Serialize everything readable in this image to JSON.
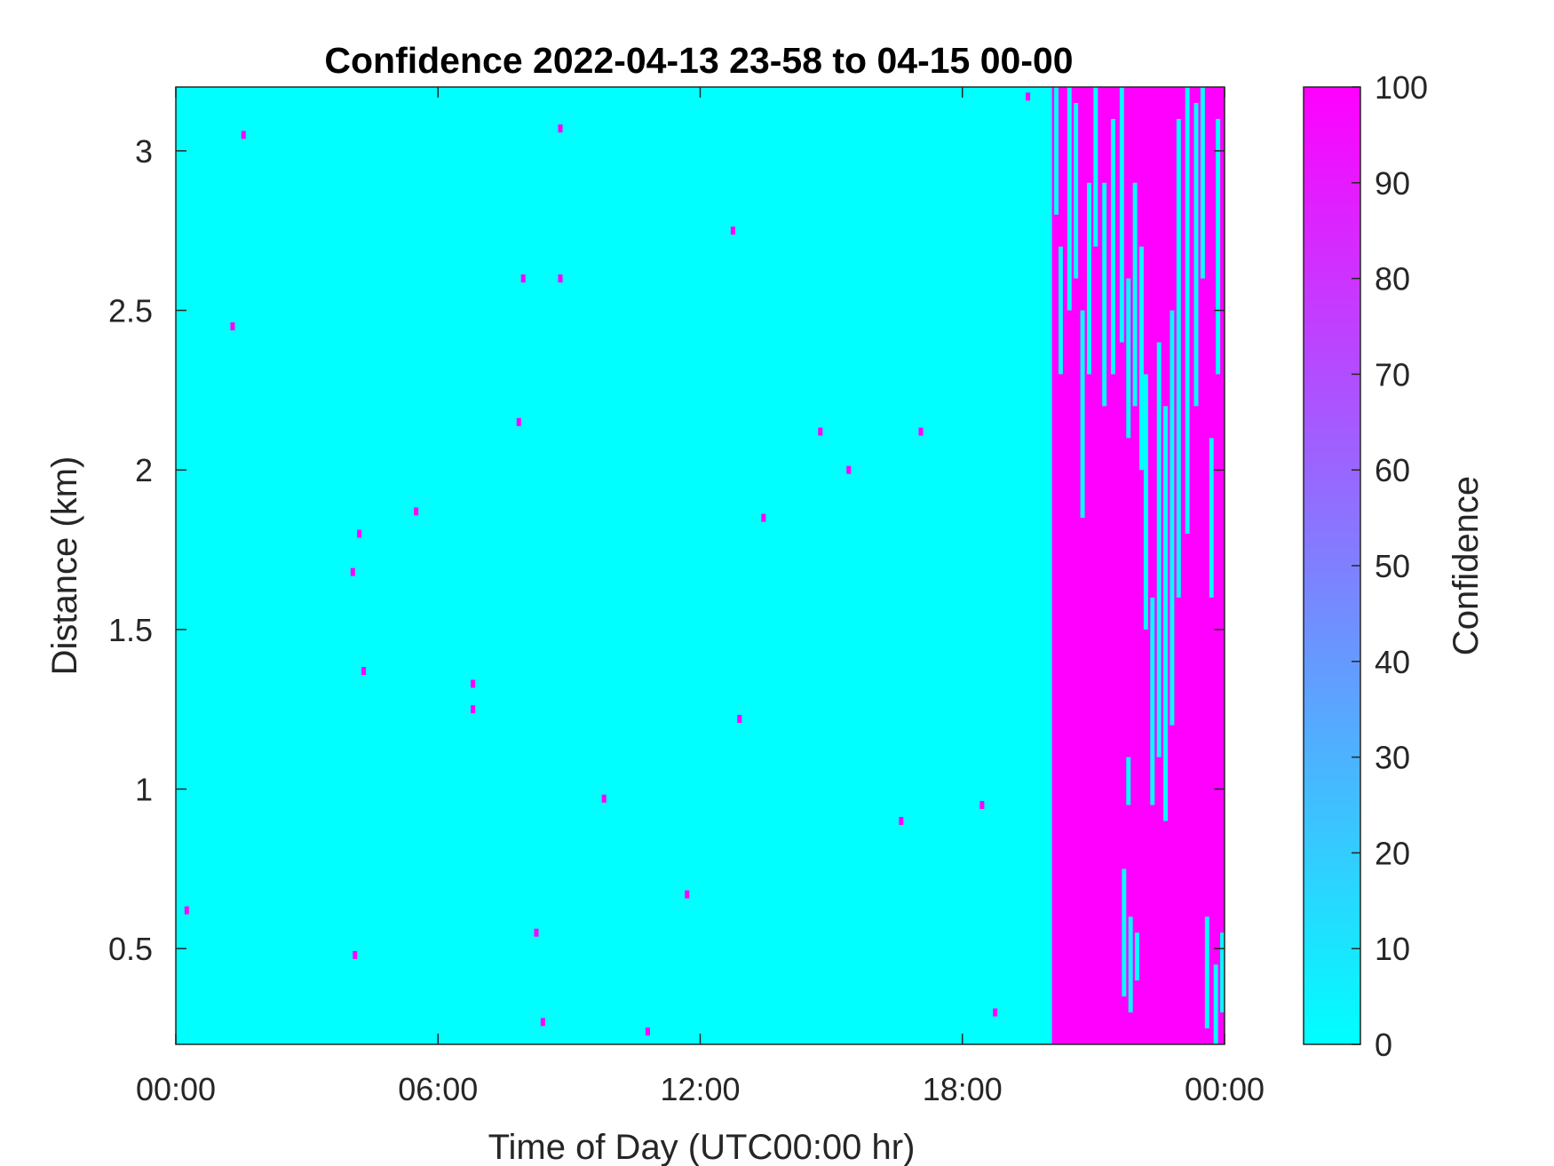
{
  "chart_data": {
    "type": "heatmap",
    "title": "Confidence 2022-04-13 23-58 to 04-15 00-00",
    "xlabel": "Time of Day (UTC00:00 hr)",
    "ylabel": "Distance (km)",
    "xlim_hours": [
      0,
      24
    ],
    "ylim_km": [
      0.2,
      3.2
    ],
    "x_ticks": [
      {
        "hour": 0,
        "label": "00:00"
      },
      {
        "hour": 6,
        "label": "06:00"
      },
      {
        "hour": 12,
        "label": "12:00"
      },
      {
        "hour": 18,
        "label": "18:00"
      },
      {
        "hour": 24,
        "label": "00:00"
      }
    ],
    "y_ticks": [
      {
        "value": 0.5,
        "label": "0.5"
      },
      {
        "value": 1.0,
        "label": "1"
      },
      {
        "value": 1.5,
        "label": "1.5"
      },
      {
        "value": 2.0,
        "label": "2"
      },
      {
        "value": 2.5,
        "label": "2.5"
      },
      {
        "value": 3.0,
        "label": "3"
      }
    ],
    "colorbar": {
      "label": "Confidence",
      "range": [
        0,
        100
      ],
      "ticks": [
        "0",
        "10",
        "20",
        "30",
        "40",
        "50",
        "60",
        "70",
        "80",
        "90",
        "100"
      ],
      "colormap": [
        "#00ffff",
        "#ff00ff"
      ]
    },
    "background_value": 0,
    "high_confidence_region": {
      "start_hour": 20.05,
      "end_hour": 24,
      "value": 100
    },
    "low_confidence_streaks": [
      {
        "hour": 20.15,
        "y0": 2.8,
        "y1": 3.2
      },
      {
        "hour": 20.25,
        "y0": 2.3,
        "y1": 2.7
      },
      {
        "hour": 20.45,
        "y0": 2.5,
        "y1": 3.2
      },
      {
        "hour": 20.6,
        "y0": 2.6,
        "y1": 3.15
      },
      {
        "hour": 20.75,
        "y0": 1.85,
        "y1": 2.5
      },
      {
        "hour": 20.9,
        "y0": 2.3,
        "y1": 2.9
      },
      {
        "hour": 21.05,
        "y0": 2.7,
        "y1": 3.2
      },
      {
        "hour": 21.25,
        "y0": 2.2,
        "y1": 2.9
      },
      {
        "hour": 21.45,
        "y0": 2.3,
        "y1": 3.1
      },
      {
        "hour": 21.65,
        "y0": 2.4,
        "y1": 3.2
      },
      {
        "hour": 21.8,
        "y0": 2.1,
        "y1": 2.6
      },
      {
        "hour": 21.95,
        "y0": 2.2,
        "y1": 2.9
      },
      {
        "hour": 22.1,
        "y0": 2.0,
        "y1": 2.7
      },
      {
        "hour": 22.2,
        "y0": 1.5,
        "y1": 2.3
      },
      {
        "hour": 22.35,
        "y0": 0.95,
        "y1": 1.6
      },
      {
        "hour": 22.5,
        "y0": 1.1,
        "y1": 2.4
      },
      {
        "hour": 22.65,
        "y0": 0.9,
        "y1": 2.2
      },
      {
        "hour": 22.8,
        "y0": 1.2,
        "y1": 2.5
      },
      {
        "hour": 22.95,
        "y0": 1.6,
        "y1": 3.1
      },
      {
        "hour": 23.15,
        "y0": 1.8,
        "y1": 3.2
      },
      {
        "hour": 23.35,
        "y0": 2.2,
        "y1": 3.15
      },
      {
        "hour": 23.5,
        "y0": 2.6,
        "y1": 3.2
      },
      {
        "hour": 23.7,
        "y0": 1.6,
        "y1": 2.1
      },
      {
        "hour": 23.85,
        "y0": 2.3,
        "y1": 3.1
      },
      {
        "hour": 21.7,
        "y0": 0.35,
        "y1": 0.75
      },
      {
        "hour": 21.85,
        "y0": 0.3,
        "y1": 0.6
      },
      {
        "hour": 22.0,
        "y0": 0.4,
        "y1": 0.55
      },
      {
        "hour": 21.8,
        "y0": 0.95,
        "y1": 1.1
      },
      {
        "hour": 23.6,
        "y0": 0.25,
        "y1": 0.6
      },
      {
        "hour": 23.8,
        "y0": 0.2,
        "y1": 0.45
      },
      {
        "hour": 23.95,
        "y0": 0.3,
        "y1": 0.55
      }
    ],
    "isolated_points": [
      {
        "hour": 0.25,
        "km": 0.62
      },
      {
        "hour": 1.3,
        "km": 2.45
      },
      {
        "hour": 1.55,
        "km": 3.05
      },
      {
        "hour": 4.05,
        "km": 1.68
      },
      {
        "hour": 4.1,
        "km": 0.48
      },
      {
        "hour": 4.2,
        "km": 1.8
      },
      {
        "hour": 4.3,
        "km": 1.37
      },
      {
        "hour": 5.5,
        "km": 1.87
      },
      {
        "hour": 6.8,
        "km": 1.33
      },
      {
        "hour": 6.8,
        "km": 1.25
      },
      {
        "hour": 7.85,
        "km": 2.15
      },
      {
        "hour": 7.95,
        "km": 2.6
      },
      {
        "hour": 8.25,
        "km": 0.55
      },
      {
        "hour": 8.4,
        "km": 0.27
      },
      {
        "hour": 8.8,
        "km": 2.6
      },
      {
        "hour": 8.8,
        "km": 3.07
      },
      {
        "hour": 9.8,
        "km": 0.97
      },
      {
        "hour": 10.8,
        "km": 0.24
      },
      {
        "hour": 11.7,
        "km": 0.67
      },
      {
        "hour": 12.75,
        "km": 2.75
      },
      {
        "hour": 12.9,
        "km": 1.22
      },
      {
        "hour": 13.45,
        "km": 1.85
      },
      {
        "hour": 14.75,
        "km": 2.12
      },
      {
        "hour": 15.4,
        "km": 2.0
      },
      {
        "hour": 16.6,
        "km": 0.9
      },
      {
        "hour": 17.05,
        "km": 2.12
      },
      {
        "hour": 18.45,
        "km": 0.95
      },
      {
        "hour": 18.75,
        "km": 0.3
      },
      {
        "hour": 19.5,
        "km": 3.17
      }
    ]
  }
}
